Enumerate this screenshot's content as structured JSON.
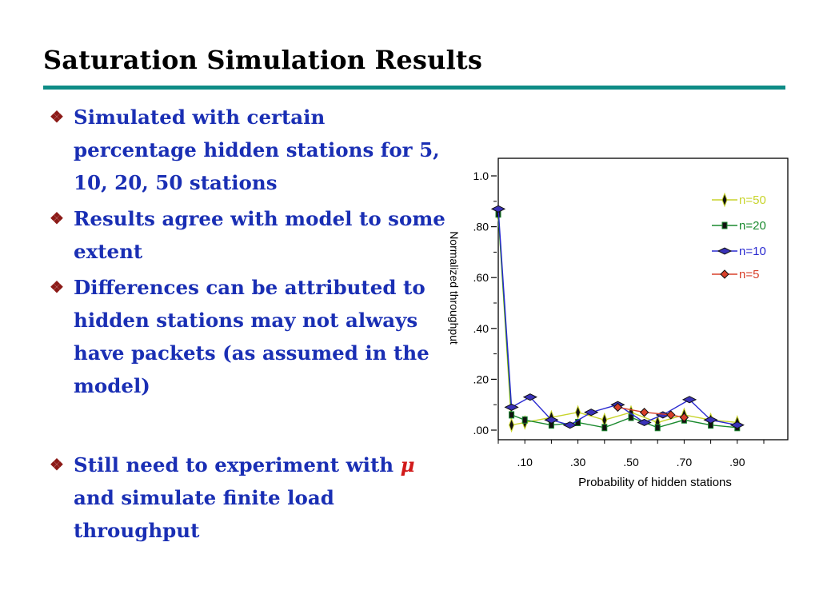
{
  "slide": {
    "title": "Saturation Simulation Results",
    "bullets": [
      {
        "text": "Simulated with certain percentage hidden stations for 5, 10, 20, 50 stations"
      },
      {
        "text": "Results agree with model to some extent"
      },
      {
        "text": "Differences can be attributed to hidden stations may not always have packets (as assumed in the model)"
      },
      {
        "text_before": "Still need to experiment with",
        "symbol": "μ",
        "text_after": "and simulate finite load throughput"
      }
    ],
    "bullet_icon": "diamond-bullet-icon",
    "colors": {
      "title_rule": "#0e8c86",
      "bullet_text": "#1a2fb4",
      "bullet_icon": "#8c1a17",
      "mu": "#d11a1a"
    }
  },
  "chart_data": {
    "type": "line",
    "xlabel": "Probability of hidden stations",
    "ylabel": "Normalized throughput",
    "xlim": [
      0.0,
      1.0
    ],
    "ylim": [
      0.0,
      1.0
    ],
    "x_ticks": [
      0.1,
      0.3,
      0.5,
      0.7,
      0.9
    ],
    "x_tick_labels": [
      ".10",
      ".30",
      ".50",
      ".70",
      ".90"
    ],
    "y_ticks": [
      0.0,
      0.2,
      0.4,
      0.6,
      0.8,
      1.0
    ],
    "y_tick_labels": [
      ".00",
      ".20",
      ".40",
      ".60",
      ".80",
      "1.0"
    ],
    "grid": false,
    "legend_position": "top-right",
    "series": [
      {
        "name": "n=50",
        "color": "#c8d42c",
        "marker": "vertical-diamond",
        "x": [
          0.0,
          0.05,
          0.1,
          0.2,
          0.3,
          0.4,
          0.5,
          0.6,
          0.7,
          0.8,
          0.9
        ],
        "y": [
          0.85,
          0.02,
          0.03,
          0.05,
          0.07,
          0.04,
          0.07,
          0.03,
          0.06,
          0.04,
          0.03
        ]
      },
      {
        "name": "n=20",
        "color": "#1a8a2e",
        "marker": "square",
        "x": [
          0.0,
          0.05,
          0.1,
          0.2,
          0.3,
          0.4,
          0.5,
          0.6,
          0.7,
          0.8,
          0.9
        ],
        "y": [
          0.85,
          0.06,
          0.04,
          0.02,
          0.03,
          0.01,
          0.05,
          0.01,
          0.04,
          0.02,
          0.01
        ]
      },
      {
        "name": "n=10",
        "color": "#2a2ad0",
        "marker": "horizontal-diamond",
        "x": [
          0.0,
          0.05,
          0.12,
          0.2,
          0.27,
          0.35,
          0.45,
          0.55,
          0.62,
          0.72,
          0.8,
          0.9
        ],
        "y": [
          0.87,
          0.09,
          0.13,
          0.04,
          0.02,
          0.07,
          0.1,
          0.03,
          0.06,
          0.12,
          0.04,
          0.02
        ]
      },
      {
        "name": "n=5",
        "color": "#d8402a",
        "marker": "diamond",
        "x": [
          0.45,
          0.55,
          0.65,
          0.7
        ],
        "y": [
          0.09,
          0.07,
          0.06,
          0.05
        ]
      }
    ]
  }
}
